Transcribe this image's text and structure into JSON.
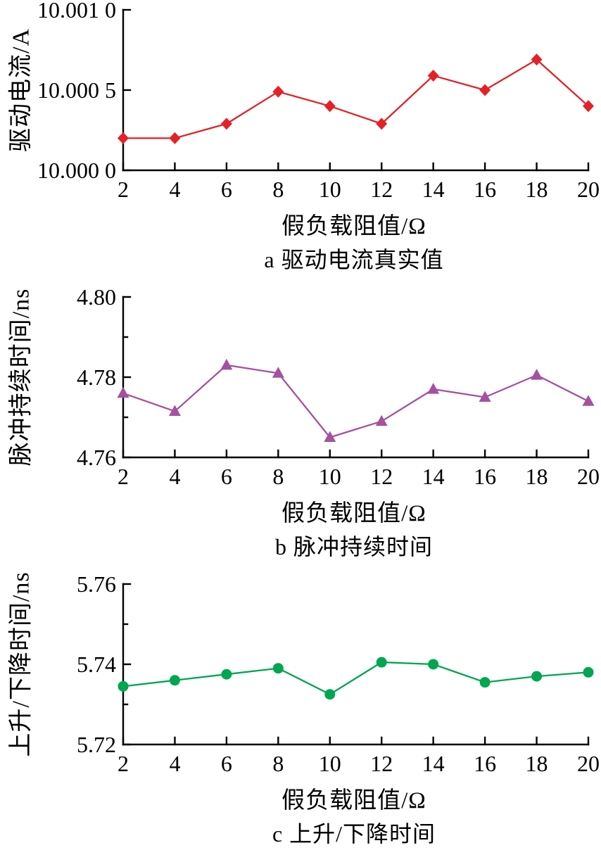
{
  "figure": {
    "background": "#ffffff"
  },
  "chart_data": [
    {
      "id": "a",
      "type": "line",
      "marker": "diamond",
      "color": "#e32228",
      "ylabel": "驱动电流/A",
      "xlabel": "假负载阻值/Ω",
      "caption": "a 驱动电流真实值",
      "x": [
        2,
        4,
        6,
        8,
        10,
        12,
        14,
        16,
        18,
        20
      ],
      "y": [
        10.0002,
        10.0002,
        10.00029,
        10.00049,
        10.0004,
        10.00029,
        10.00059,
        10.0005,
        10.00069,
        10.0004
      ],
      "xlim": [
        2,
        20
      ],
      "ylim": [
        10.0,
        10.001
      ],
      "xticks": [
        2,
        4,
        6,
        8,
        10,
        12,
        14,
        16,
        18,
        20
      ],
      "yticks": [
        10.0,
        10.0005,
        10.001
      ],
      "ytick_labels": [
        "10.000 0",
        "10.000 5",
        "10.001 0"
      ],
      "yticks_minor": [],
      "grid": false,
      "legend": null
    },
    {
      "id": "b",
      "type": "line",
      "marker": "triangle",
      "color": "#a5519f",
      "ylabel": "脉冲持续时间/ns",
      "xlabel": "假负载阻值/Ω",
      "caption": "b 脉冲持续时间",
      "x": [
        2,
        4,
        6,
        8,
        10,
        12,
        14,
        16,
        18,
        20
      ],
      "y": [
        4.776,
        4.7715,
        4.783,
        4.781,
        4.765,
        4.769,
        4.777,
        4.775,
        4.7805,
        4.774
      ],
      "xlim": [
        2,
        20
      ],
      "ylim": [
        4.76,
        4.8
      ],
      "xticks": [
        2,
        4,
        6,
        8,
        10,
        12,
        14,
        16,
        18,
        20
      ],
      "yticks": [
        4.76,
        4.78,
        4.8
      ],
      "ytick_labels": [
        "4.76",
        "4.78",
        "4.80"
      ],
      "yticks_minor": [
        4.77,
        4.79
      ],
      "grid": false,
      "legend": null
    },
    {
      "id": "c",
      "type": "line",
      "marker": "circle",
      "color": "#00a651",
      "ylabel": "上升/下降时间/ns",
      "xlabel": "假负载阻值/Ω",
      "caption": "c 上升/下降时间",
      "x": [
        2,
        4,
        6,
        8,
        10,
        12,
        14,
        16,
        18,
        20
      ],
      "y": [
        5.7345,
        5.736,
        5.7375,
        5.739,
        5.7325,
        5.7405,
        5.74,
        5.7355,
        5.737,
        5.738
      ],
      "xlim": [
        2,
        20
      ],
      "ylim": [
        5.72,
        5.76
      ],
      "xticks": [
        2,
        4,
        6,
        8,
        10,
        12,
        14,
        16,
        18,
        20
      ],
      "yticks": [
        5.72,
        5.74,
        5.76
      ],
      "ytick_labels": [
        "5.72",
        "5.74",
        "5.76"
      ],
      "yticks_minor": [
        5.73,
        5.75
      ],
      "grid": false,
      "legend": null
    }
  ]
}
